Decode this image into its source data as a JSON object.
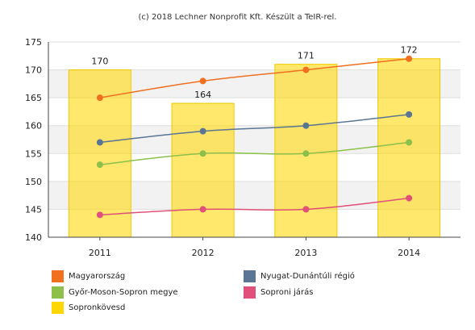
{
  "credit": "(c) 2018 Lechner Nonprofit Kft. Készült a TeIR-rel.",
  "chart_data": {
    "type": "bar",
    "title": "",
    "xlabel": "",
    "ylabel": "",
    "categories": [
      "2011",
      "2012",
      "2013",
      "2014"
    ],
    "ylim": [
      140,
      175
    ],
    "yticks": [
      140,
      145,
      150,
      155,
      160,
      165,
      170,
      175
    ],
    "grid": true,
    "bar_series": {
      "name": "Sopronkövesd",
      "color": "#FFD700",
      "values": [
        170,
        164,
        171,
        172
      ],
      "data_labels": [
        "170",
        "164",
        "171",
        "172"
      ]
    },
    "line_series": [
      {
        "name": "Magyarország",
        "color": "#F07020",
        "values": [
          165,
          168,
          170,
          172
        ]
      },
      {
        "name": "Nyugat-Dunántúli régió",
        "color": "#5B7595",
        "values": [
          157,
          159,
          160,
          162
        ]
      },
      {
        "name": "Győr-Moson-Sopron megye",
        "color": "#8CC04B",
        "values": [
          153,
          155,
          155,
          157
        ]
      },
      {
        "name": "Soproni járás",
        "color": "#E0507A",
        "values": [
          144,
          145,
          145,
          147
        ]
      }
    ],
    "legend": {
      "placement": "bottom",
      "items": [
        {
          "label": "Magyarország",
          "color": "#F07020"
        },
        {
          "label": "Nyugat-Dunántúli régió",
          "color": "#5B7595"
        },
        {
          "label": "Győr-Moson-Sopron megye",
          "color": "#8CC04B"
        },
        {
          "label": "Soproni járás",
          "color": "#E0507A"
        },
        {
          "label": "Sopronkövesd",
          "color": "#FFD700"
        }
      ]
    }
  }
}
